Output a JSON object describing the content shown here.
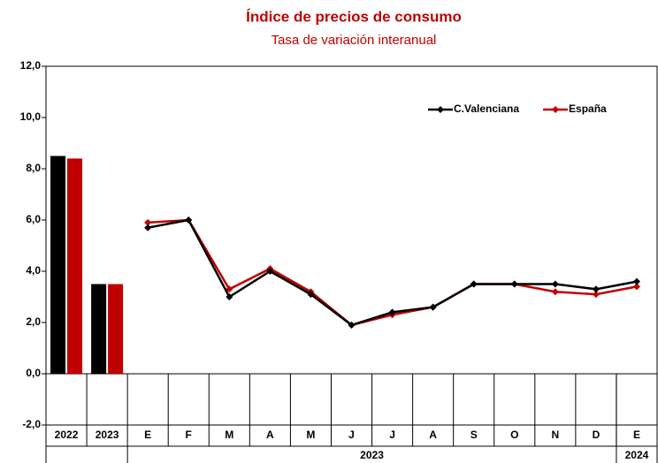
{
  "chart_data": {
    "type": "bar-line",
    "title": "Índice de precios de consumo",
    "subtitle": "Tasa de variación interanual",
    "bar_categories": [
      "2022",
      "2023"
    ],
    "line_groups": [
      {
        "label": "2023",
        "categories": [
          "E",
          "F",
          "M",
          "A",
          "M",
          "J",
          "J",
          "A",
          "S",
          "O",
          "N",
          "D"
        ]
      },
      {
        "label": "2024",
        "categories": [
          "E"
        ]
      }
    ],
    "series": [
      {
        "name": "C.Valenciana",
        "color": "#000000",
        "bar_values": [
          8.5,
          3.5
        ],
        "line_values": [
          5.7,
          6.0,
          3.0,
          4.0,
          3.1,
          1.9,
          2.4,
          2.6,
          3.5,
          3.5,
          3.5,
          3.3,
          3.6
        ]
      },
      {
        "name": "España",
        "color": "#c00000",
        "bar_values": [
          8.4,
          3.5
        ],
        "line_values": [
          5.9,
          6.0,
          3.3,
          4.1,
          3.2,
          1.9,
          2.3,
          2.6,
          3.5,
          3.5,
          3.2,
          3.1,
          3.4
        ]
      }
    ],
    "ylim": [
      -2,
      12
    ],
    "yticks": [
      {
        "value": -2,
        "label": "-2,0"
      },
      {
        "value": 0,
        "label": "0,0"
      },
      {
        "value": 2,
        "label": "2,0"
      },
      {
        "value": 4,
        "label": "4,0"
      },
      {
        "value": 6,
        "label": "6,0"
      },
      {
        "value": 8,
        "label": "8,0"
      },
      {
        "value": 10,
        "label": "10,0"
      },
      {
        "value": 12,
        "label": "12,0"
      }
    ],
    "legend": "top-right",
    "grid": false
  }
}
